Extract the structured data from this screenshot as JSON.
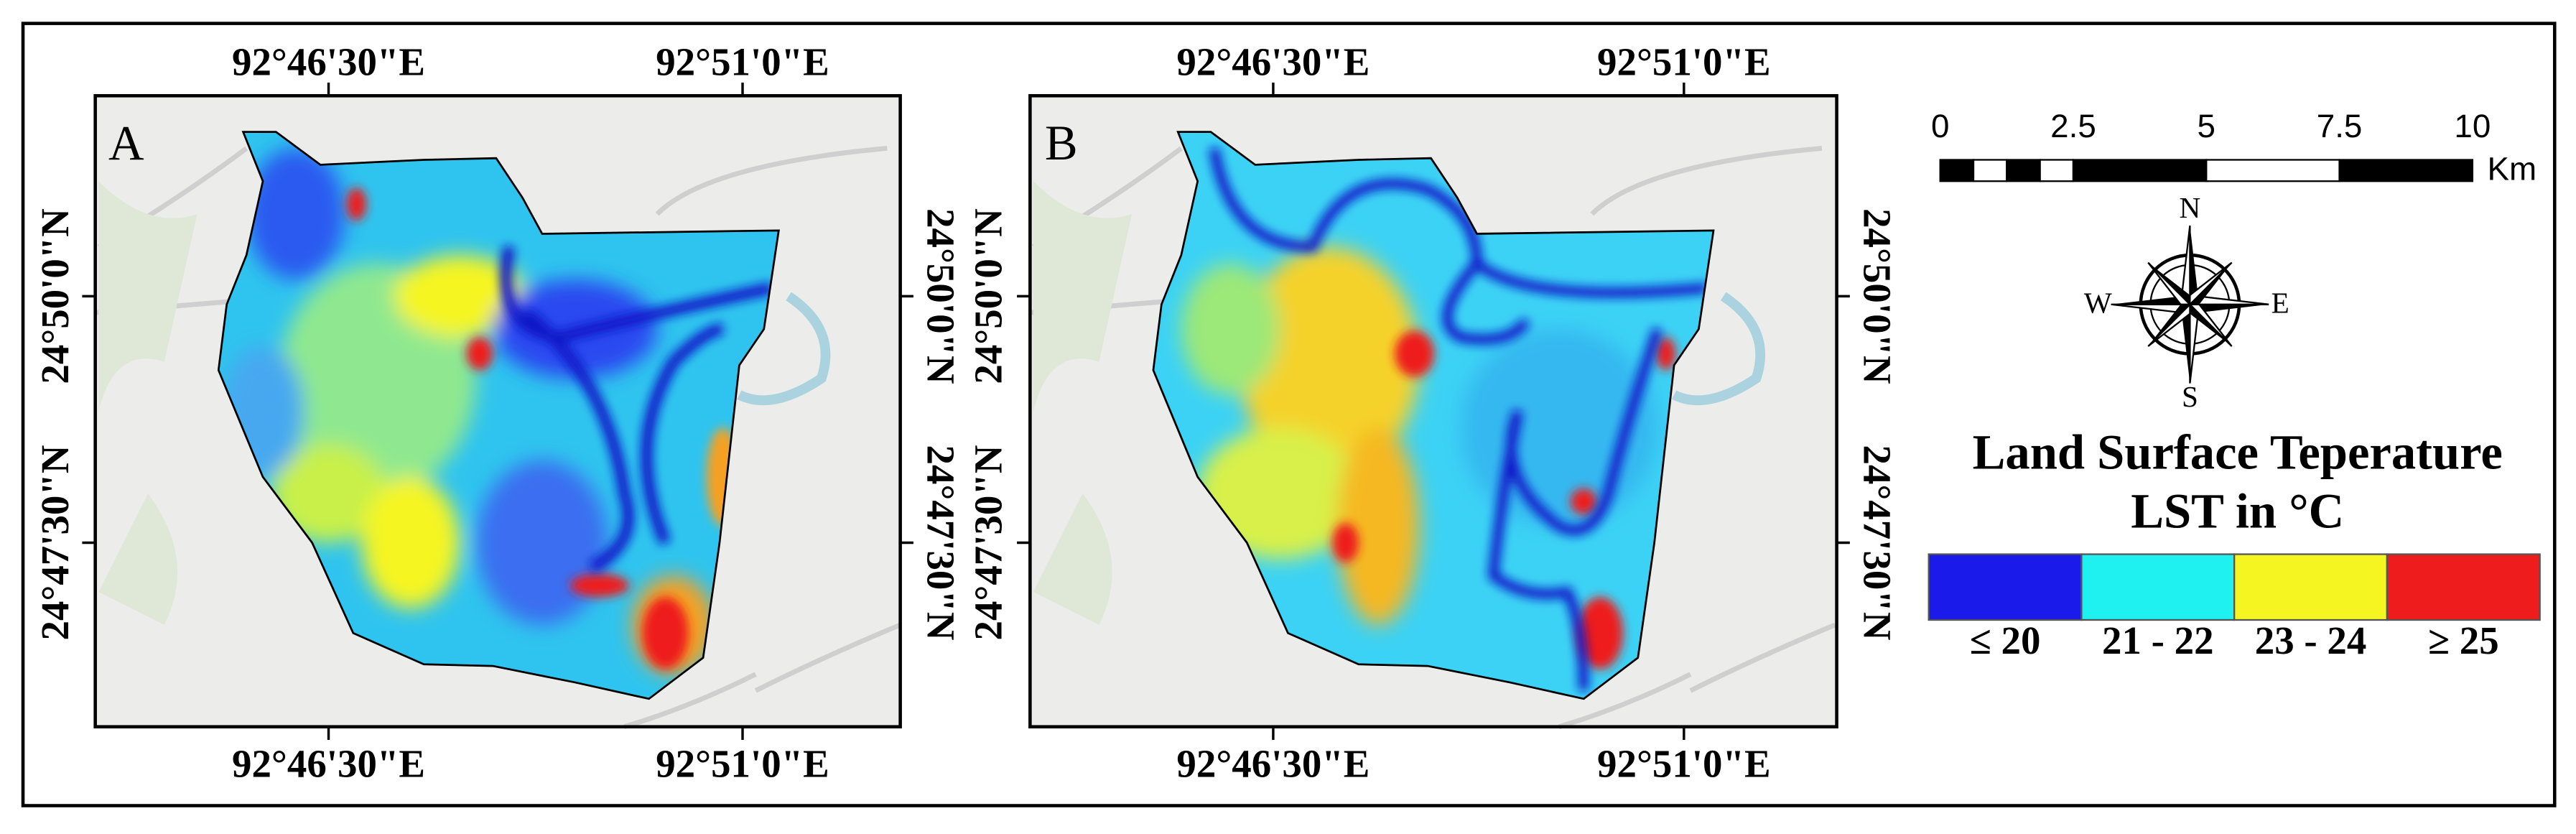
{
  "panels": [
    {
      "label": "A",
      "x_labels": [
        "92°46'30\"E",
        "92°51'0\"E"
      ],
      "y_labels": [
        "24°50'0\"N",
        "24°47'30\"N"
      ]
    },
    {
      "label": "B",
      "x_labels": [
        "92°46'30\"E",
        "92°51'0\"E"
      ],
      "y_labels": [
        "24°50'0\"N",
        "24°47'30\"N"
      ]
    }
  ],
  "scale_bar": {
    "ticks": [
      0,
      2.5,
      5,
      7.5,
      10
    ],
    "unit": "Km"
  },
  "compass": {
    "north": "N",
    "east": "E",
    "south": "S",
    "west": "W"
  },
  "legend": {
    "title": [
      "Land Surface Teperature",
      "LST in °C"
    ],
    "classes": [
      {
        "label": "≤ 20",
        "color": "#1a1aeb"
      },
      {
        "label": "21 - 22",
        "color": "#1ff0f0"
      },
      {
        "label": "23 - 24",
        "color": "#f5f522"
      },
      {
        "label": "≥ 25",
        "color": "#ee1c1c"
      }
    ]
  }
}
